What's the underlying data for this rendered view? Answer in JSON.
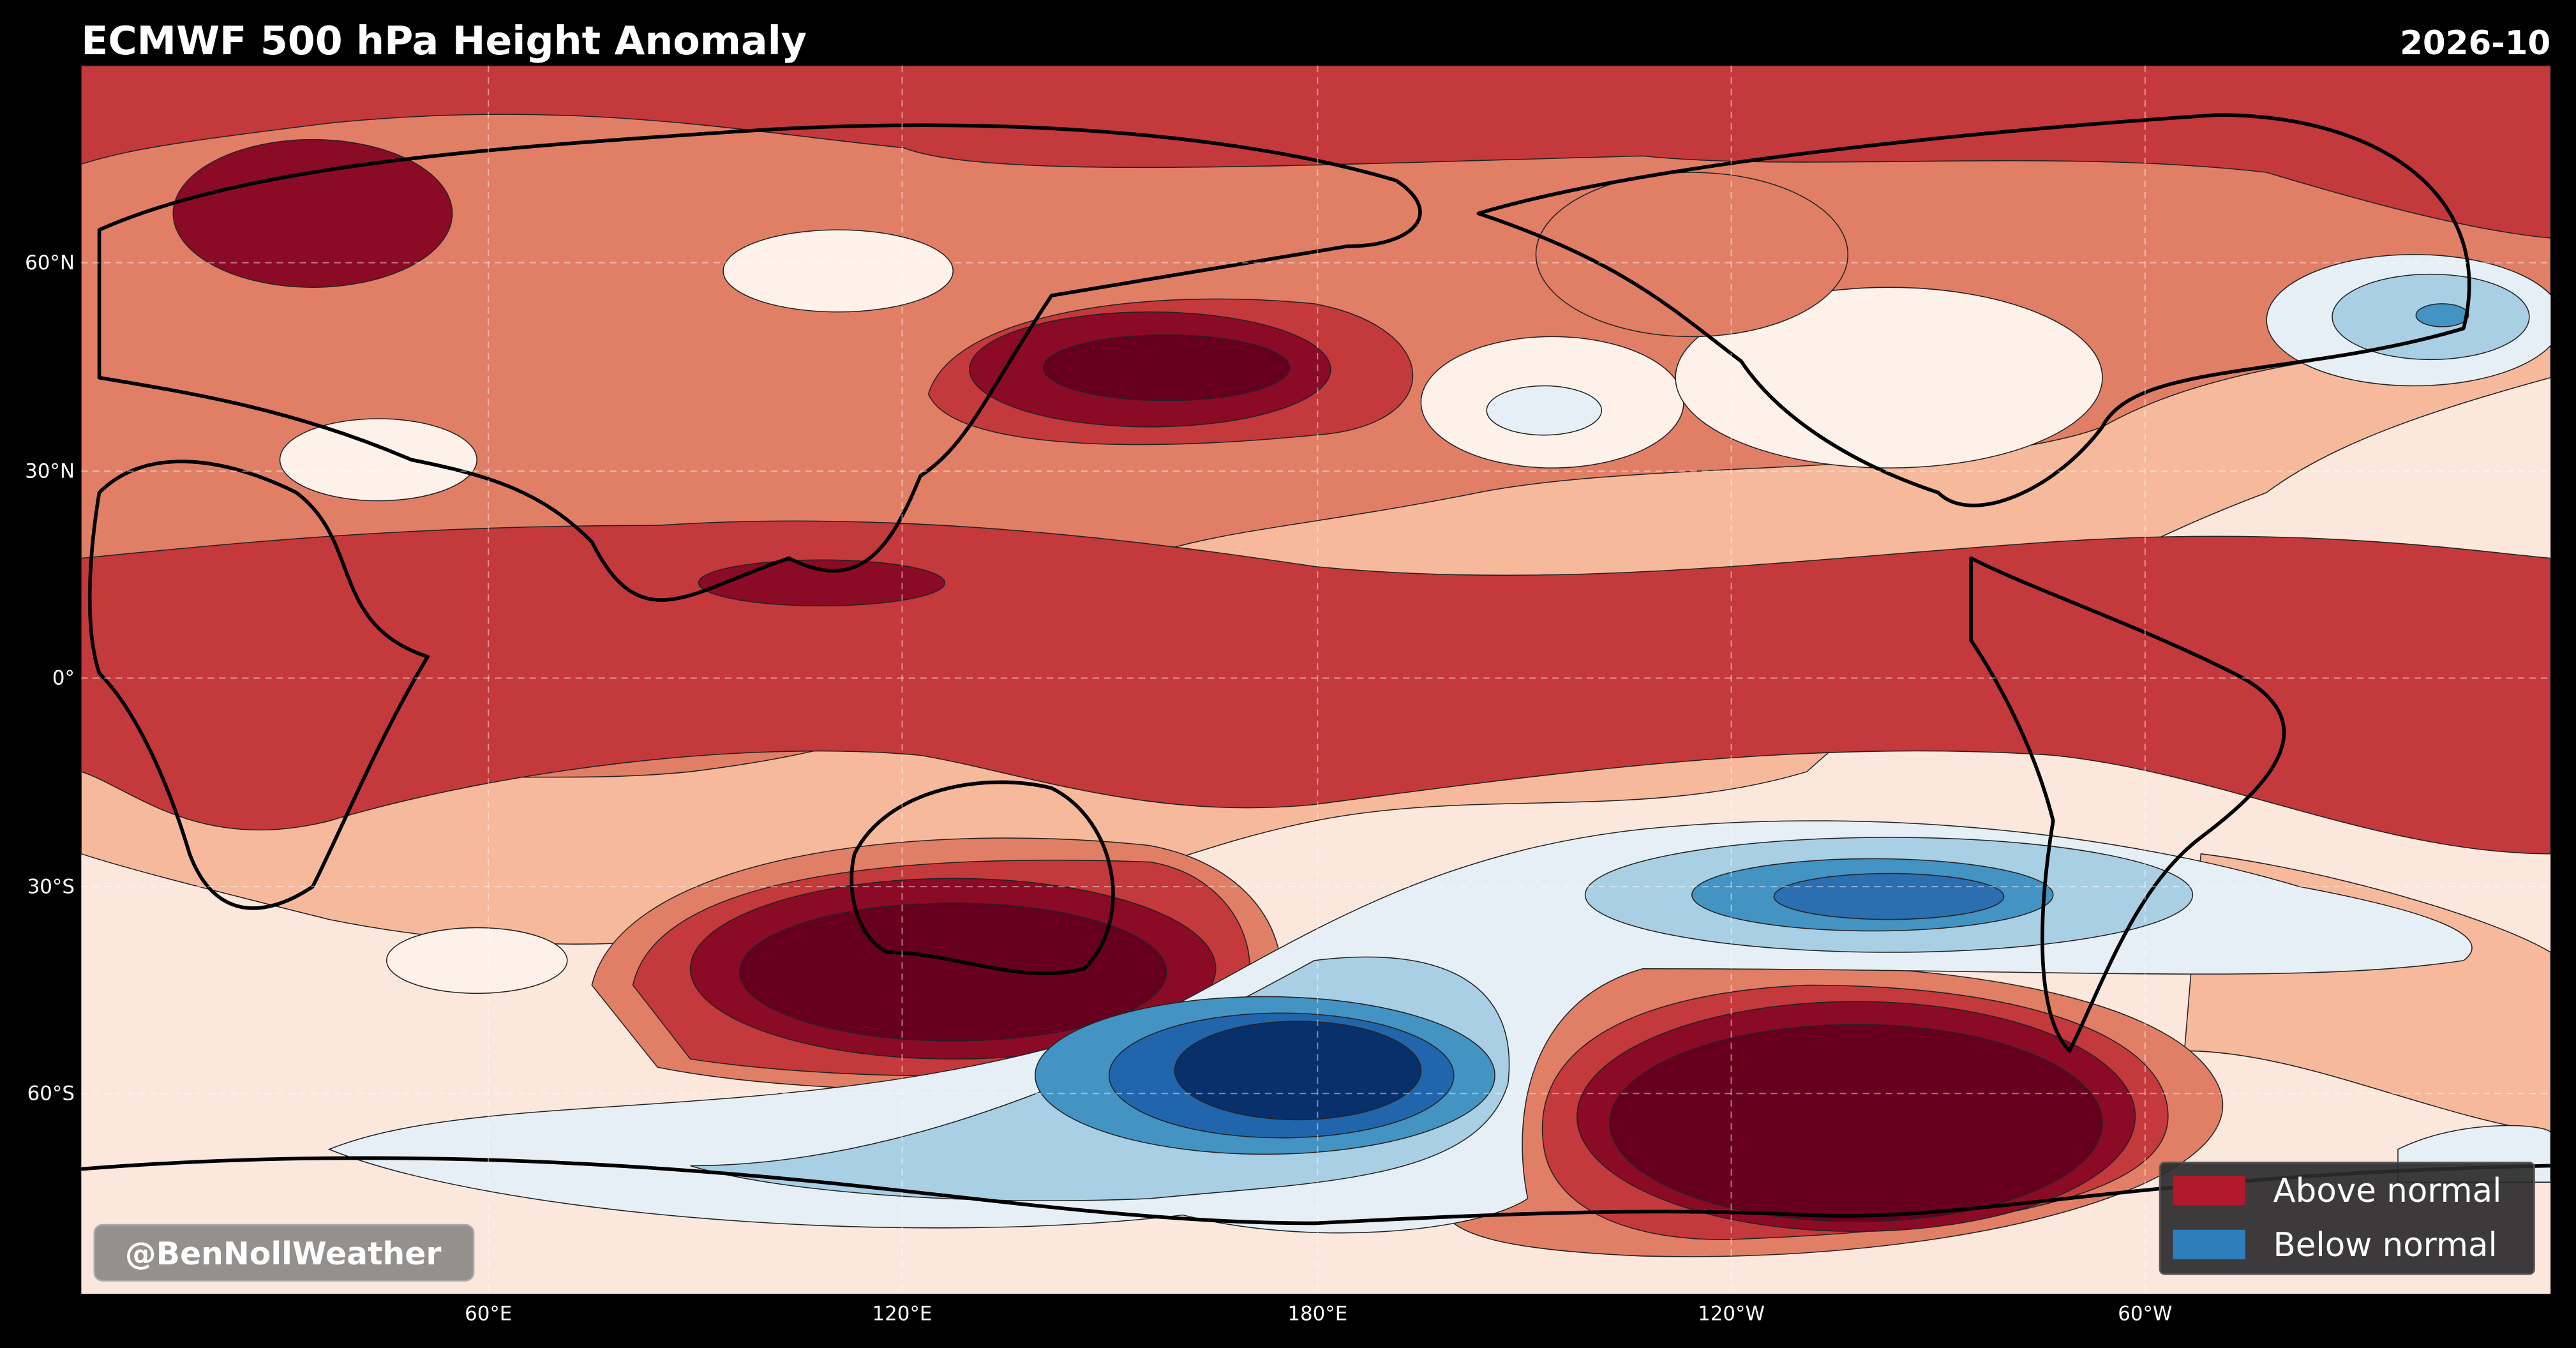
{
  "header": {
    "title": "ECMWF 500 hPa Height Anomaly",
    "date": "2026-10"
  },
  "map": {
    "lat_labels": [
      "60°N",
      "30°N",
      "0°",
      "30°S",
      "60°S"
    ],
    "lon_labels": [
      "60°E",
      "120°E",
      "180°E",
      "120°W",
      "60°W"
    ]
  },
  "legend": [
    "Above normal",
    "Below normal"
  ],
  "watermark": "@BenNollWeather"
}
